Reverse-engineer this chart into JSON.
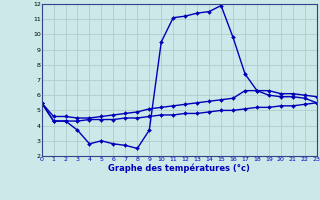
{
  "title": "Graphe des températures (°c)",
  "background_color": "#cce8e8",
  "line_color": "#0000bb",
  "hours": [
    0,
    1,
    2,
    3,
    4,
    5,
    6,
    7,
    8,
    9,
    10,
    11,
    12,
    13,
    14,
    15,
    16,
    17,
    18,
    19,
    20,
    21,
    22,
    23
  ],
  "temp_main": [
    5.5,
    4.3,
    4.3,
    3.7,
    2.8,
    3.0,
    2.8,
    2.7,
    2.5,
    3.7,
    9.5,
    11.1,
    11.2,
    11.4,
    11.5,
    11.9,
    9.8,
    7.4,
    6.3,
    6.0,
    5.9,
    5.9,
    5.8,
    5.5
  ],
  "temp_upper": [
    5.5,
    4.6,
    4.6,
    4.5,
    4.5,
    4.6,
    4.7,
    4.8,
    4.9,
    5.1,
    5.2,
    5.3,
    5.4,
    5.5,
    5.6,
    5.7,
    5.8,
    6.3,
    6.3,
    6.3,
    6.1,
    6.1,
    6.0,
    5.9
  ],
  "temp_lower": [
    5.5,
    4.3,
    4.3,
    4.3,
    4.4,
    4.4,
    4.4,
    4.5,
    4.5,
    4.6,
    4.7,
    4.7,
    4.8,
    4.8,
    4.9,
    5.0,
    5.0,
    5.1,
    5.2,
    5.2,
    5.3,
    5.3,
    5.4,
    5.5
  ],
  "xlim": [
    0,
    23
  ],
  "ylim": [
    2,
    12
  ],
  "yticks": [
    2,
    3,
    4,
    5,
    6,
    7,
    8,
    9,
    10,
    11,
    12
  ],
  "xticks": [
    0,
    1,
    2,
    3,
    4,
    5,
    6,
    7,
    8,
    9,
    10,
    11,
    12,
    13,
    14,
    15,
    16,
    17,
    18,
    19,
    20,
    21,
    22,
    23
  ],
  "grid_color": "#b0cccc",
  "markersize": 2.0,
  "linewidth": 1.0
}
